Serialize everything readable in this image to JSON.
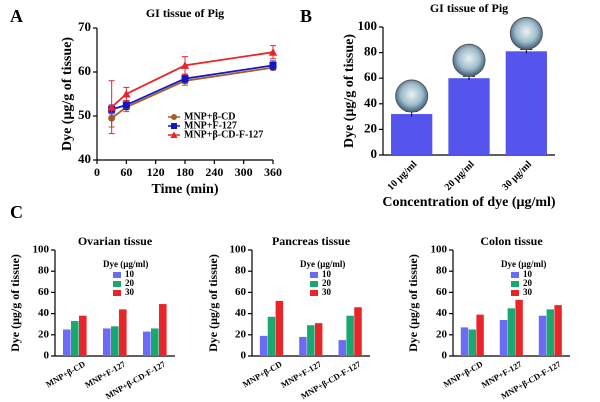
{
  "chart_data": [
    {
      "type": "line",
      "panel_label": "A",
      "title": "GI tissue of Pig",
      "x_label": "Time (min)",
      "y_label": "Dye (μg/g of tissue)",
      "x": [
        30,
        60,
        180,
        360
      ],
      "xlim": [
        0,
        360
      ],
      "xticks": [
        0,
        60,
        120,
        180,
        240,
        300,
        360
      ],
      "ylim": [
        40,
        70
      ],
      "yticks": [
        40,
        50,
        60,
        70
      ],
      "legend": "lower right",
      "series": [
        {
          "name": "MNP+β-CD",
          "color": "#a0602a",
          "marker": "circle",
          "values": [
            49.5,
            52,
            58,
            61
          ],
          "errors": [
            2,
            1,
            1,
            0.5
          ]
        },
        {
          "name": "MNP+F-127",
          "color": "#1515c8",
          "marker": "square",
          "values": [
            51.5,
            52.5,
            58.5,
            61.5
          ],
          "errors": [
            1,
            1,
            1,
            1
          ]
        },
        {
          "name": "MNP+β-CD-F-127",
          "color": "#e8262a",
          "marker": "triangle",
          "values": [
            52,
            55,
            61.5,
            64.5
          ],
          "errors": [
            6,
            1.5,
            2,
            1.5
          ]
        }
      ]
    },
    {
      "type": "bar",
      "panel_label": "B",
      "title": "GI tissue of Pig",
      "x_label": "Concentration of dye (μg/ml)",
      "y_label": "Dye (μg/g of tissue)",
      "categories": [
        "10 μg/ml",
        "20 μg/ml",
        "30 μg/ml"
      ],
      "values": [
        32,
        60,
        81
      ],
      "errors": [
        2,
        1.5,
        1.5
      ],
      "color": "#5555ee",
      "ylim": [
        0,
        100
      ],
      "yticks": [
        0,
        20,
        40,
        60,
        80,
        100
      ]
    },
    {
      "type": "grouped_bar",
      "panel_label": "C",
      "title": "Ovarian tissue",
      "y_label": "Dye (μg/g of tissue)",
      "legend_title": "Dye (μg/ml)",
      "legend": "upper right",
      "categories": [
        "MNP+β-CD",
        "MNP+F-127",
        "MNP+β-CD-F-127"
      ],
      "ylim": [
        0,
        100
      ],
      "yticks": [
        0,
        20,
        40,
        60,
        80,
        100
      ],
      "series": [
        {
          "name": "10",
          "color": "#6b6bf5",
          "values": [
            25,
            26,
            23
          ]
        },
        {
          "name": "20",
          "color": "#1aa870",
          "values": [
            33,
            28,
            26
          ]
        },
        {
          "name": "30",
          "color": "#e8262a",
          "values": [
            38,
            44,
            49
          ]
        }
      ]
    },
    {
      "type": "grouped_bar",
      "title": "Pancreas tissue",
      "y_label": "Dye (μg/g of tissue)",
      "legend_title": "Dye (μg/ml)",
      "legend": "upper right",
      "categories": [
        "MNP+β-CD",
        "MNP+F-127",
        "MNP+β-CD-F-127"
      ],
      "ylim": [
        0,
        100
      ],
      "yticks": [
        0,
        20,
        40,
        60,
        80,
        100
      ],
      "series": [
        {
          "name": "10",
          "color": "#6b6bf5",
          "values": [
            19,
            18,
            15
          ]
        },
        {
          "name": "20",
          "color": "#1aa870",
          "values": [
            37,
            29,
            38
          ]
        },
        {
          "name": "30",
          "color": "#e8262a",
          "values": [
            52,
            31,
            46
          ]
        }
      ]
    },
    {
      "type": "grouped_bar",
      "title": "Colon tissue",
      "y_label": "Dye (μg/g of tissue)",
      "legend_title": "Dye (μg/ml)",
      "legend": "upper right",
      "categories": [
        "MNP+β-CD",
        "MNP+F-127",
        "MNP+β-CD-F-127"
      ],
      "ylim": [
        0,
        100
      ],
      "yticks": [
        0,
        20,
        40,
        60,
        80,
        100
      ],
      "series": [
        {
          "name": "10",
          "color": "#6b6bf5",
          "values": [
            27,
            34,
            38
          ]
        },
        {
          "name": "20",
          "color": "#1aa870",
          "values": [
            25,
            45,
            44
          ]
        },
        {
          "name": "30",
          "color": "#e8262a",
          "values": [
            39,
            53,
            48
          ]
        }
      ]
    }
  ]
}
